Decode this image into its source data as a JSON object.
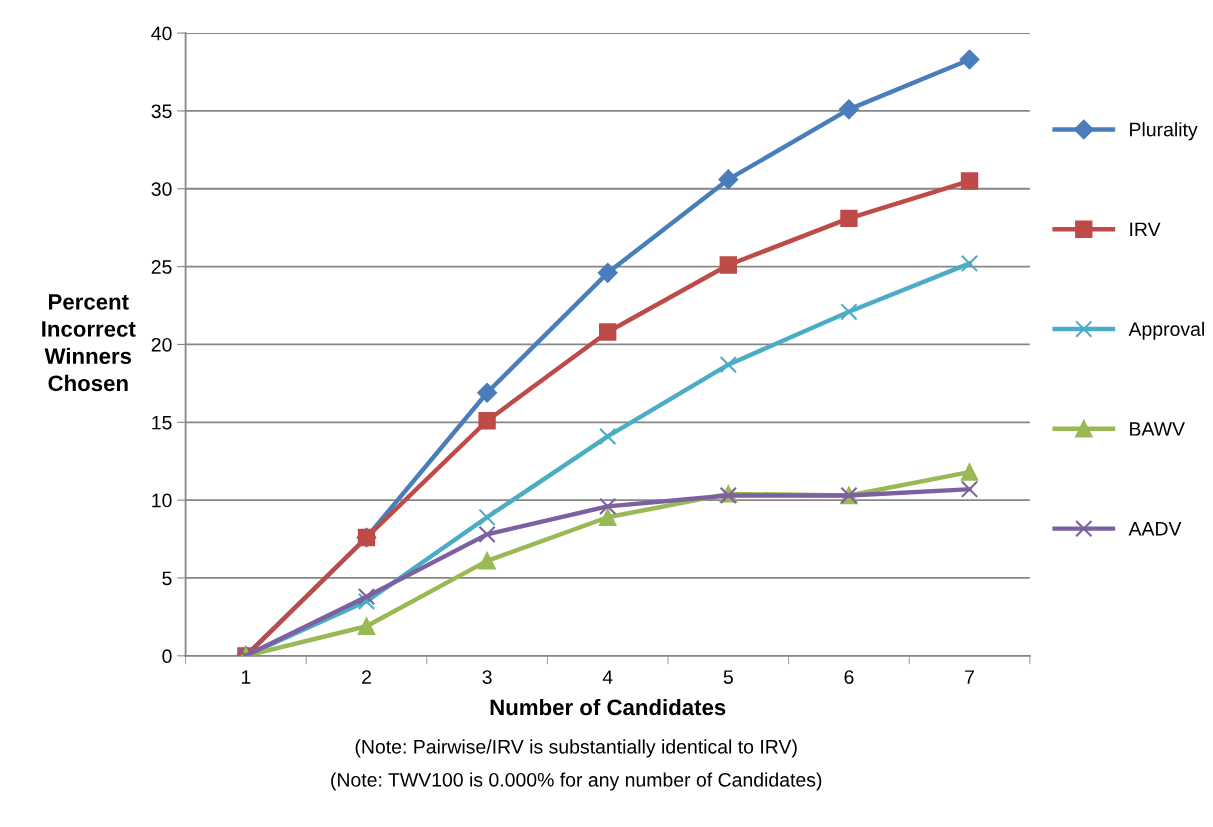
{
  "chart_data": {
    "type": "line",
    "xlabel": "Number of Candidates",
    "ylabel": "Percent\nIncorrect\nWinners\nChosen",
    "categories": [
      "1",
      "2",
      "3",
      "4",
      "5",
      "6",
      "7"
    ],
    "series": [
      {
        "name": "Plurality",
        "color": "#4a7ebb",
        "marker": "diamond",
        "values": [
          0,
          7.6,
          16.9,
          24.6,
          30.6,
          35.1,
          38.3
        ]
      },
      {
        "name": "IRV",
        "color": "#be4b48",
        "marker": "square",
        "values": [
          0,
          7.6,
          15.1,
          20.8,
          25.1,
          28.1,
          30.5
        ]
      },
      {
        "name": "Approval",
        "color": "#4bacc6",
        "marker": "cross",
        "values": [
          0,
          3.5,
          8.9,
          14.1,
          18.7,
          22.1,
          25.2
        ]
      },
      {
        "name": "BAWV",
        "color": "#98b954",
        "marker": "triangle",
        "values": [
          0,
          1.9,
          6.1,
          8.9,
          10.4,
          10.3,
          11.8
        ]
      },
      {
        "name": "AADV",
        "color": "#7d60a0",
        "marker": "cross",
        "values": [
          0,
          3.8,
          7.8,
          9.6,
          10.3,
          10.3,
          10.7
        ]
      }
    ],
    "ylim": [
      0,
      40
    ],
    "yticks": [
      0,
      5,
      10,
      15,
      20,
      25,
      30,
      35,
      40
    ],
    "grid": "y",
    "legend": "right",
    "line_style": "solid",
    "annotations": [
      "(Note: Pairwise/IRV is substantially identical to IRV)",
      "(Note: TWV100 is 0.000% for any number of Candidates)"
    ]
  }
}
